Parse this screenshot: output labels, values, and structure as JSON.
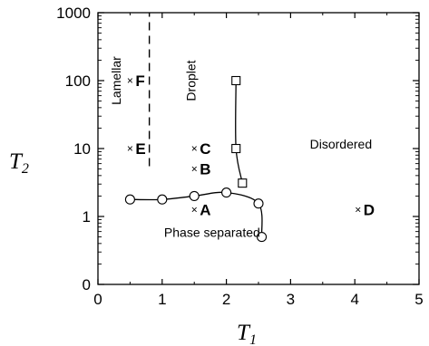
{
  "chart_data": {
    "type": "scatter",
    "x_axis": {
      "title_main": "T",
      "title_sub": "1",
      "range": [
        0,
        5
      ],
      "scale": "linear",
      "ticks": [
        "0",
        "1",
        "2",
        "3",
        "4",
        "5"
      ],
      "tick_values": [
        0,
        1,
        2,
        3,
        4,
        5
      ]
    },
    "y_axis": {
      "title_main": "T",
      "title_sub": "2",
      "scale": "log",
      "ticks": [
        "0",
        "1",
        "10",
        "100",
        "1000"
      ],
      "tick_values": [
        0.1,
        1,
        10,
        100,
        1000
      ],
      "note": "lowest tick printed as 0"
    },
    "grid": false,
    "regions": [
      {
        "label": "Lamellar",
        "x": 0.35,
        "y": 100,
        "rotated": true
      },
      {
        "label": "Droplet",
        "x": 1.52,
        "y": 100,
        "rotated": true
      },
      {
        "label": "Disordered",
        "x": 3.3,
        "y": 10,
        "rotated": false
      },
      {
        "label": "Phase separated",
        "x": 1.03,
        "y": 0.5,
        "rotated": false
      }
    ],
    "circle_boundary": [
      {
        "x": 0.5,
        "y": 1.78
      },
      {
        "x": 1.0,
        "y": 1.78
      },
      {
        "x": 1.5,
        "y": 2.0
      },
      {
        "x": 2.0,
        "y": 2.25
      },
      {
        "x": 2.5,
        "y": 1.55
      },
      {
        "x": 2.55,
        "y": 0.5
      }
    ],
    "square_boundary": [
      {
        "x": 2.15,
        "y": 100
      },
      {
        "x": 2.15,
        "y": 10
      },
      {
        "x": 2.25,
        "y": 3.1
      }
    ],
    "dashed_boundary": {
      "x": 0.8,
      "y_range": [
        5.5,
        1000
      ]
    },
    "points": [
      {
        "label": "A",
        "x": 1.5,
        "y": 1.25
      },
      {
        "label": "B",
        "x": 1.5,
        "y": 5
      },
      {
        "label": "C",
        "x": 1.5,
        "y": 10
      },
      {
        "label": "D",
        "x": 4.05,
        "y": 1.25
      },
      {
        "label": "E",
        "x": 0.5,
        "y": 10
      },
      {
        "label": "F",
        "x": 0.5,
        "y": 100
      }
    ]
  }
}
